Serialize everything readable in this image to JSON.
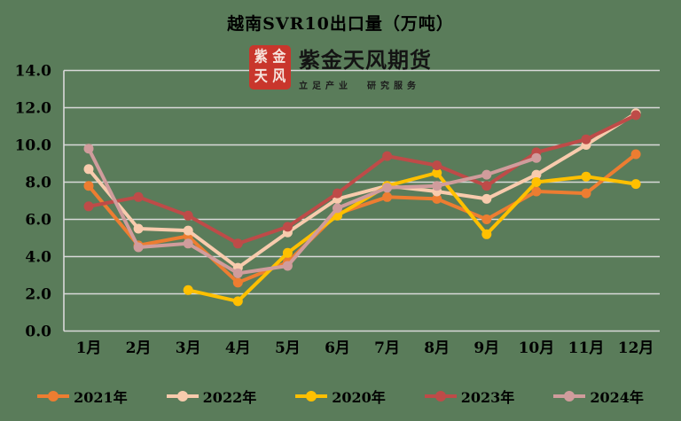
{
  "title": "越南SVR10出口量（万吨）",
  "logo": {
    "seal_chars": [
      "紫",
      "金",
      "天",
      "风"
    ],
    "brand": "紫金天风期货",
    "tagline": "立足产业  研究服务",
    "seal_color": "#C9362C"
  },
  "colors": {
    "background": "#5A7C5A",
    "gridline": "#D9D9D9",
    "axis_text": "#000000"
  },
  "chart_data": {
    "type": "line",
    "title": "越南SVR10出口量（万吨）",
    "categories": [
      "1月",
      "2月",
      "3月",
      "4月",
      "5月",
      "6月",
      "7月",
      "8月",
      "9月",
      "10月",
      "11月",
      "12月"
    ],
    "series": [
      {
        "name": "2021年",
        "color": "#ED7D31",
        "values": [
          7.8,
          4.6,
          5.1,
          2.6,
          3.7,
          6.3,
          7.2,
          7.1,
          6.0,
          7.5,
          7.4,
          9.5
        ]
      },
      {
        "name": "2022年",
        "color": "#F8CBAD",
        "values": [
          8.7,
          5.5,
          5.4,
          3.4,
          5.3,
          7.1,
          7.8,
          7.5,
          7.1,
          8.4,
          10.0,
          11.7
        ]
      },
      {
        "name": "2020年",
        "color": "#FFC000",
        "values": [
          null,
          null,
          2.2,
          1.6,
          4.2,
          6.2,
          7.8,
          8.5,
          5.2,
          8.0,
          8.3,
          7.9
        ]
      },
      {
        "name": "2023年",
        "color": "#BE4B48",
        "values": [
          6.7,
          7.2,
          6.2,
          4.7,
          5.6,
          7.4,
          9.4,
          8.9,
          7.8,
          9.6,
          10.3,
          11.6
        ]
      },
      {
        "name": "2024年",
        "color": "#D09C9C",
        "values": [
          9.8,
          4.5,
          4.7,
          3.1,
          3.5,
          6.6,
          7.7,
          7.8,
          8.4,
          9.3,
          null,
          null
        ]
      }
    ],
    "ylim": [
      0,
      14
    ],
    "ytick_step": 2,
    "ytick_decimals": 1,
    "xlabel": "",
    "ylabel": "",
    "grid": "horizontal",
    "legend_position": "bottom"
  }
}
